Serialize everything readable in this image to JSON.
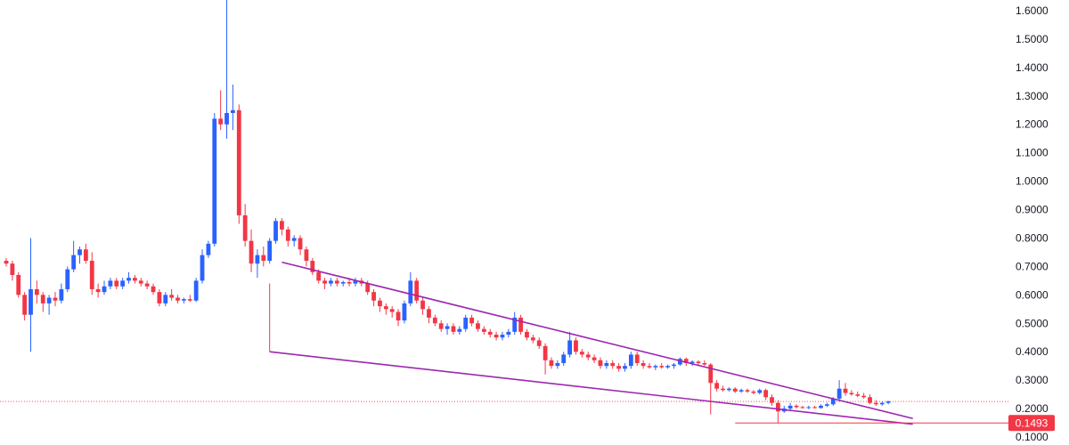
{
  "chart_data": {
    "type": "candlestick",
    "y_axis": {
      "position": "right",
      "range": [
        0.09,
        1.65
      ],
      "ticks": [
        "1.6000",
        "1.5000",
        "1.4000",
        "1.3000",
        "1.2000",
        "1.1000",
        "1.0000",
        "0.9000",
        "0.8000",
        "0.7000",
        "0.6000",
        "0.5000",
        "0.4000",
        "0.3000",
        "0.2000",
        "0.1000"
      ],
      "tick_values": [
        1.6,
        1.5,
        1.4,
        1.3,
        1.2,
        1.1,
        1.0,
        0.9,
        0.8,
        0.7,
        0.6,
        0.5,
        0.4,
        0.3,
        0.2,
        0.1
      ]
    },
    "grid": false,
    "current_price": {
      "label": "0.1493",
      "value": 0.1493,
      "color": "#f23645"
    },
    "last_price_value": 0.225,
    "colors": {
      "up": "#2962ff",
      "down": "#f23645",
      "wedge": "#9c27b0",
      "support": "#f23645",
      "last_line": "#f7525f"
    },
    "candles": [
      [
        0.72,
        0.73,
        0.7,
        0.71
      ],
      [
        0.71,
        0.72,
        0.65,
        0.67
      ],
      [
        0.67,
        0.68,
        0.59,
        0.6
      ],
      [
        0.6,
        0.61,
        0.51,
        0.53
      ],
      [
        0.53,
        0.8,
        0.4,
        0.62
      ],
      [
        0.62,
        0.65,
        0.57,
        0.6
      ],
      [
        0.6,
        0.61,
        0.54,
        0.57
      ],
      [
        0.57,
        0.6,
        0.53,
        0.59
      ],
      [
        0.59,
        0.61,
        0.56,
        0.58
      ],
      [
        0.58,
        0.64,
        0.57,
        0.62
      ],
      [
        0.62,
        0.7,
        0.61,
        0.69
      ],
      [
        0.69,
        0.79,
        0.68,
        0.74
      ],
      [
        0.74,
        0.77,
        0.71,
        0.76
      ],
      [
        0.76,
        0.78,
        0.71,
        0.72
      ],
      [
        0.72,
        0.75,
        0.6,
        0.62
      ],
      [
        0.62,
        0.64,
        0.59,
        0.61
      ],
      [
        0.61,
        0.65,
        0.6,
        0.63
      ],
      [
        0.63,
        0.66,
        0.62,
        0.65
      ],
      [
        0.65,
        0.66,
        0.62,
        0.63
      ],
      [
        0.63,
        0.66,
        0.62,
        0.65
      ],
      [
        0.65,
        0.68,
        0.64,
        0.66
      ],
      [
        0.66,
        0.67,
        0.64,
        0.65
      ],
      [
        0.65,
        0.66,
        0.63,
        0.64
      ],
      [
        0.64,
        0.65,
        0.62,
        0.63
      ],
      [
        0.63,
        0.64,
        0.6,
        0.61
      ],
      [
        0.61,
        0.62,
        0.56,
        0.57
      ],
      [
        0.57,
        0.61,
        0.56,
        0.6
      ],
      [
        0.6,
        0.62,
        0.58,
        0.59
      ],
      [
        0.59,
        0.6,
        0.57,
        0.58
      ],
      [
        0.58,
        0.59,
        0.57,
        0.585
      ],
      [
        0.585,
        0.6,
        0.575,
        0.58
      ],
      [
        0.58,
        0.66,
        0.575,
        0.65
      ],
      [
        0.65,
        0.76,
        0.64,
        0.74
      ],
      [
        0.74,
        0.79,
        0.73,
        0.78
      ],
      [
        0.78,
        1.24,
        0.77,
        1.22
      ],
      [
        1.22,
        1.32,
        1.18,
        1.2
      ],
      [
        1.2,
        1.65,
        1.15,
        1.24
      ],
      [
        1.24,
        1.34,
        1.18,
        1.25
      ],
      [
        1.25,
        1.27,
        0.85,
        0.88
      ],
      [
        0.88,
        0.92,
        0.77,
        0.79
      ],
      [
        0.79,
        0.83,
        0.68,
        0.71
      ],
      [
        0.71,
        0.76,
        0.66,
        0.74
      ],
      [
        0.74,
        0.77,
        0.7,
        0.72
      ],
      [
        0.72,
        0.8,
        0.71,
        0.79
      ],
      [
        0.79,
        0.87,
        0.78,
        0.86
      ],
      [
        0.86,
        0.87,
        0.81,
        0.83
      ],
      [
        0.83,
        0.84,
        0.77,
        0.79
      ],
      [
        0.79,
        0.81,
        0.77,
        0.8
      ],
      [
        0.8,
        0.81,
        0.74,
        0.76
      ],
      [
        0.76,
        0.77,
        0.7,
        0.72
      ],
      [
        0.72,
        0.73,
        0.67,
        0.68
      ],
      [
        0.68,
        0.69,
        0.64,
        0.65
      ],
      [
        0.65,
        0.66,
        0.62,
        0.64
      ],
      [
        0.64,
        0.66,
        0.63,
        0.65
      ],
      [
        0.65,
        0.66,
        0.63,
        0.64
      ],
      [
        0.64,
        0.65,
        0.63,
        0.645
      ],
      [
        0.645,
        0.66,
        0.63,
        0.64
      ],
      [
        0.64,
        0.66,
        0.63,
        0.65
      ],
      [
        0.65,
        0.66,
        0.63,
        0.64
      ],
      [
        0.64,
        0.65,
        0.6,
        0.61
      ],
      [
        0.61,
        0.62,
        0.56,
        0.58
      ],
      [
        0.58,
        0.59,
        0.54,
        0.56
      ],
      [
        0.56,
        0.57,
        0.53,
        0.55
      ],
      [
        0.55,
        0.56,
        0.52,
        0.54
      ],
      [
        0.54,
        0.55,
        0.49,
        0.51
      ],
      [
        0.51,
        0.58,
        0.5,
        0.57
      ],
      [
        0.57,
        0.68,
        0.56,
        0.65
      ],
      [
        0.65,
        0.66,
        0.57,
        0.58
      ],
      [
        0.58,
        0.59,
        0.53,
        0.55
      ],
      [
        0.55,
        0.56,
        0.5,
        0.52
      ],
      [
        0.52,
        0.53,
        0.49,
        0.5
      ],
      [
        0.5,
        0.51,
        0.47,
        0.48
      ],
      [
        0.48,
        0.5,
        0.46,
        0.49
      ],
      [
        0.49,
        0.5,
        0.46,
        0.47
      ],
      [
        0.47,
        0.49,
        0.46,
        0.48
      ],
      [
        0.48,
        0.53,
        0.47,
        0.52
      ],
      [
        0.52,
        0.53,
        0.49,
        0.5
      ],
      [
        0.5,
        0.51,
        0.47,
        0.48
      ],
      [
        0.48,
        0.49,
        0.46,
        0.47
      ],
      [
        0.47,
        0.48,
        0.45,
        0.46
      ],
      [
        0.46,
        0.47,
        0.44,
        0.45
      ],
      [
        0.45,
        0.47,
        0.44,
        0.46
      ],
      [
        0.46,
        0.48,
        0.45,
        0.47
      ],
      [
        0.47,
        0.54,
        0.46,
        0.52
      ],
      [
        0.52,
        0.53,
        0.46,
        0.47
      ],
      [
        0.47,
        0.48,
        0.44,
        0.45
      ],
      [
        0.45,
        0.46,
        0.43,
        0.44
      ],
      [
        0.44,
        0.45,
        0.41,
        0.42
      ],
      [
        0.42,
        0.43,
        0.32,
        0.37
      ],
      [
        0.37,
        0.38,
        0.34,
        0.35
      ],
      [
        0.35,
        0.37,
        0.34,
        0.36
      ],
      [
        0.36,
        0.4,
        0.35,
        0.39
      ],
      [
        0.39,
        0.47,
        0.38,
        0.44
      ],
      [
        0.44,
        0.45,
        0.39,
        0.4
      ],
      [
        0.4,
        0.41,
        0.38,
        0.39
      ],
      [
        0.39,
        0.4,
        0.37,
        0.38
      ],
      [
        0.38,
        0.39,
        0.36,
        0.37
      ],
      [
        0.37,
        0.38,
        0.34,
        0.35
      ],
      [
        0.35,
        0.37,
        0.34,
        0.36
      ],
      [
        0.36,
        0.37,
        0.34,
        0.35
      ],
      [
        0.35,
        0.36,
        0.33,
        0.34
      ],
      [
        0.34,
        0.36,
        0.33,
        0.35
      ],
      [
        0.35,
        0.4,
        0.34,
        0.39
      ],
      [
        0.39,
        0.4,
        0.35,
        0.36
      ],
      [
        0.36,
        0.37,
        0.34,
        0.35
      ],
      [
        0.35,
        0.36,
        0.34,
        0.345
      ],
      [
        0.345,
        0.355,
        0.335,
        0.35
      ],
      [
        0.35,
        0.36,
        0.34,
        0.345
      ],
      [
        0.345,
        0.355,
        0.34,
        0.35
      ],
      [
        0.35,
        0.36,
        0.34,
        0.355
      ],
      [
        0.355,
        0.38,
        0.35,
        0.375
      ],
      [
        0.375,
        0.38,
        0.35,
        0.36
      ],
      [
        0.36,
        0.37,
        0.35,
        0.365
      ],
      [
        0.365,
        0.37,
        0.35,
        0.36
      ],
      [
        0.36,
        0.37,
        0.35,
        0.355
      ],
      [
        0.355,
        0.36,
        0.18,
        0.29
      ],
      [
        0.29,
        0.3,
        0.26,
        0.27
      ],
      [
        0.27,
        0.28,
        0.26,
        0.265
      ],
      [
        0.265,
        0.275,
        0.26,
        0.27
      ],
      [
        0.27,
        0.275,
        0.255,
        0.26
      ],
      [
        0.26,
        0.27,
        0.255,
        0.265
      ],
      [
        0.265,
        0.27,
        0.255,
        0.26
      ],
      [
        0.26,
        0.265,
        0.25,
        0.255
      ],
      [
        0.255,
        0.27,
        0.25,
        0.265
      ],
      [
        0.265,
        0.27,
        0.23,
        0.24
      ],
      [
        0.24,
        0.25,
        0.21,
        0.22
      ],
      [
        0.22,
        0.23,
        0.15,
        0.19
      ],
      [
        0.19,
        0.21,
        0.185,
        0.2
      ],
      [
        0.2,
        0.22,
        0.19,
        0.21
      ],
      [
        0.21,
        0.215,
        0.2,
        0.205
      ],
      [
        0.205,
        0.21,
        0.2,
        0.203
      ],
      [
        0.203,
        0.21,
        0.198,
        0.205
      ],
      [
        0.205,
        0.21,
        0.2,
        0.202
      ],
      [
        0.202,
        0.215,
        0.2,
        0.21
      ],
      [
        0.21,
        0.22,
        0.205,
        0.215
      ],
      [
        0.215,
        0.24,
        0.21,
        0.235
      ],
      [
        0.235,
        0.3,
        0.225,
        0.27
      ],
      [
        0.27,
        0.29,
        0.245,
        0.255
      ],
      [
        0.255,
        0.265,
        0.245,
        0.25
      ],
      [
        0.25,
        0.26,
        0.24,
        0.245
      ],
      [
        0.245,
        0.255,
        0.235,
        0.24
      ],
      [
        0.24,
        0.25,
        0.215,
        0.22
      ],
      [
        0.22,
        0.23,
        0.21,
        0.215
      ],
      [
        0.215,
        0.225,
        0.21,
        0.22
      ],
      [
        0.22,
        0.228,
        0.215,
        0.225
      ]
    ],
    "wedge_upper": [
      [
        45,
        0.715
      ],
      [
        148,
        0.165
      ]
    ],
    "wedge_lower": [
      [
        43,
        0.4
      ],
      [
        148,
        0.145
      ]
    ],
    "support_level": {
      "value": 0.1493,
      "from_index": 119,
      "wick_index": 125
    }
  }
}
